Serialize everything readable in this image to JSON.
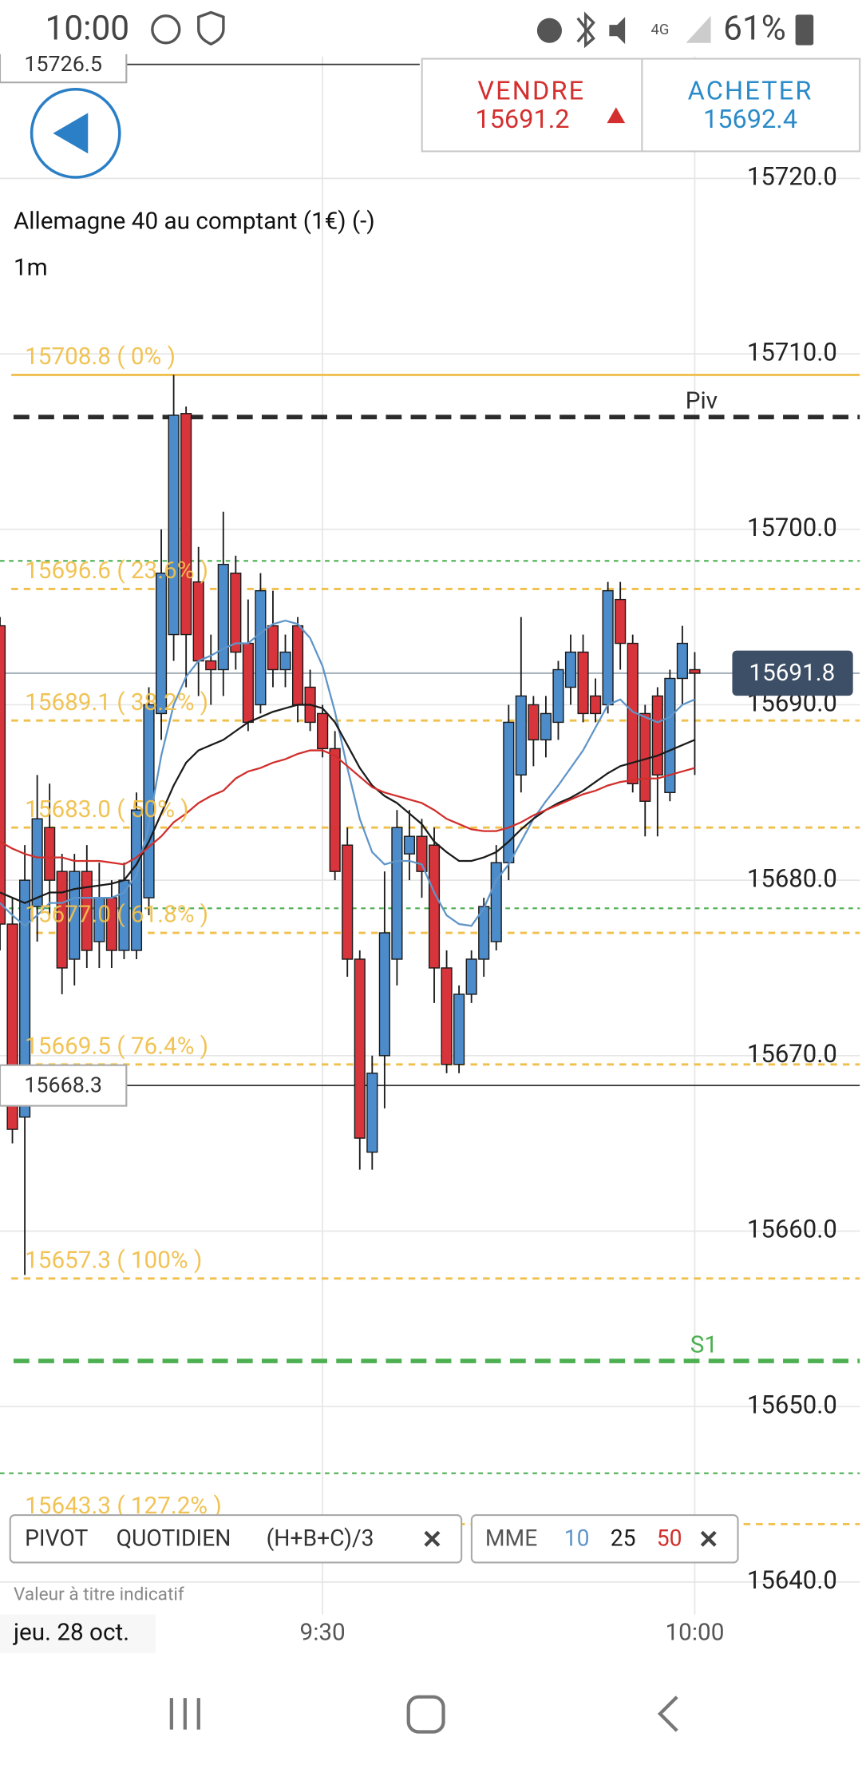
{
  "status_bar": {
    "time": "10:00",
    "battery": "61%"
  },
  "header": {
    "sell_label": "VENDRE",
    "sell_price": "15691.2",
    "buy_label": "ACHETER",
    "buy_price": "15692.4"
  },
  "chart_data": {
    "type": "candlestick",
    "title": "Allemagne 40 au comptant (1€) (-)",
    "subtitle": "1m",
    "x": [
      544,
      545,
      546,
      547,
      548,
      549,
      550,
      551,
      552,
      553,
      554,
      555,
      556,
      557,
      558,
      559,
      560,
      561,
      562,
      563,
      564,
      565,
      566,
      567,
      568,
      569,
      570,
      571,
      572,
      573,
      574,
      575,
      576,
      577,
      578,
      579,
      580,
      581,
      582,
      583,
      584,
      585,
      586,
      587,
      588,
      589,
      590,
      591,
      592,
      593,
      594,
      595,
      596,
      597,
      598,
      599,
      600
    ],
    "open": [
      15694.5,
      15677.5,
      15666.5,
      15678.5,
      15683,
      15680.5,
      15675.5,
      15680.5,
      15676.5,
      15679,
      15676,
      15676,
      15679,
      15689.5,
      15694,
      15706.6,
      15697,
      15692.5,
      15692,
      15697.5,
      15693.5,
      15690,
      15694.5,
      15692,
      15694.5,
      15691,
      15689.5,
      15687.5,
      15682,
      15675.5,
      15664.5,
      15670,
      15675.5,
      15681.5,
      15682.5,
      15682,
      15675,
      15669.5,
      15673.5,
      15675.5,
      15676.5,
      15681,
      15686,
      15690,
      15688,
      15689,
      15691,
      15693,
      15690.5,
      15690,
      15696,
      15693.5,
      15689.5,
      15690.5,
      15685,
      15691.5,
      15692
    ],
    "high": [
      15695,
      15679,
      15682,
      15686,
      15685.5,
      15681.5,
      15681.5,
      15682,
      15681,
      15680,
      15681,
      15685,
      15691,
      15700,
      15708.8,
      15707,
      15699,
      15694,
      15701,
      15698.5,
      15696,
      15697.5,
      15696.5,
      15694,
      15695,
      15692,
      15690,
      15688.5,
      15683,
      15676,
      15670,
      15680.5,
      15684,
      15684,
      15683.5,
      15683,
      15676,
      15674,
      15676,
      15679,
      15682,
      15690,
      15695,
      15690.5,
      15690.5,
      15692.5,
      15694,
      15694,
      15691.5,
      15697,
      15697,
      15694,
      15690,
      15691,
      15692,
      15694.5,
      15693
    ],
    "low": [
      15676,
      15665,
      15657.5,
      15676.5,
      15678,
      15673.5,
      15674,
      15675,
      15675,
      15675,
      15675.5,
      15675.5,
      15678,
      15688,
      15692.5,
      15691,
      15690.5,
      15690,
      15690.5,
      15692,
      15688.5,
      15689.5,
      15691,
      15691,
      15689,
      15688.5,
      15687,
      15680,
      15674.5,
      15663.5,
      15663.5,
      15667,
      15674,
      15680,
      15679,
      15673,
      15669,
      15669,
      15673,
      15674.5,
      15676,
      15680,
      15685,
      15686.5,
      15687,
      15688,
      15690,
      15689,
      15689,
      15689.5,
      15692,
      15685,
      15682.5,
      15682.5,
      15684.5,
      15690,
      15686
    ],
    "close": [
      15677.5,
      15665.8,
      15680,
      15683.5,
      15680,
      15675,
      15680.5,
      15676,
      15679,
      15676,
      15680,
      15684,
      15690,
      15697.5,
      15706.5,
      15694,
      15692.5,
      15692,
      15698,
      15693,
      15689,
      15696.5,
      15692,
      15693,
      15690,
      15689,
      15687.5,
      15680.5,
      15675.5,
      15665.3,
      15669,
      15677,
      15683,
      15682.5,
      15680.5,
      15675,
      15669.5,
      15673.5,
      15675.5,
      15678.5,
      15681,
      15689,
      15690.5,
      15688,
      15689.5,
      15692,
      15693,
      15689.5,
      15689.5,
      15696.5,
      15693.5,
      15685.5,
      15684.5,
      15686,
      15691.5,
      15693.5,
      15691.8
    ],
    "up_color": "#4d8ccb",
    "down_color": "#d8343c",
    "series": [
      {
        "name": "10",
        "color": "#5f95c8",
        "values": [
          15678.7,
          15678.0,
          15677.4,
          15678.0,
          15678.7,
          15678.7,
          15679.0,
          15679.0,
          15679.0,
          15679.0,
          15679.3,
          15680.3,
          15683.2,
          15687.1,
          15690.0,
          15691.6,
          15692.5,
          15692.8,
          15693.2,
          15693.5,
          15693.5,
          15694.1,
          15694.6,
          15694.8,
          15694.6,
          15693.8,
          15692.2,
          15689.6,
          15686.4,
          15683.5,
          15681.6,
          15680.9,
          15681.1,
          15681.1,
          15680.9,
          15679.3,
          15678.0,
          15677.5,
          15677.4,
          15678.4,
          15680.0,
          15680.9,
          15682.2,
          15683.5,
          15684.5,
          15685.4,
          15686.4,
          15687.4,
          15688.7,
          15690.0,
          15690.3,
          15689.6,
          15689.3,
          15689.0,
          15689.3,
          15690.0,
          15690.3
        ]
      },
      {
        "name": "25",
        "color": "#1b1b1b",
        "values": [
          15679.3,
          15679.0,
          15678.7,
          15679.0,
          15679.3,
          15679.3,
          15679.5,
          15679.6,
          15679.7,
          15679.8,
          15680.0,
          15680.9,
          15682.2,
          15683.8,
          15685.4,
          15686.7,
          15687.4,
          15687.7,
          15688.0,
          15688.5,
          15689.0,
          15689.3,
          15689.6,
          15689.8,
          15690.0,
          15690.0,
          15689.8,
          15689.0,
          15687.7,
          15686.4,
          15685.4,
          15684.8,
          15684.4,
          15683.8,
          15683.2,
          15682.2,
          15681.6,
          15681.1,
          15681.1,
          15681.3,
          15681.6,
          15682.2,
          15682.9,
          15683.5,
          15684.0,
          15684.4,
          15684.7,
          15685.1,
          15685.6,
          15686.1,
          15686.5,
          15686.7,
          15686.9,
          15687.1,
          15687.4,
          15687.7,
          15688.0
        ]
      },
      {
        "name": "50",
        "color": "#d12f2b",
        "values": [
          15682.2,
          15681.8,
          15681.5,
          15681.3,
          15681.3,
          15681.3,
          15681.1,
          15681.1,
          15681.1,
          15681.0,
          15680.9,
          15681.3,
          15681.9,
          15682.5,
          15683.3,
          15683.8,
          15684.4,
          15684.8,
          15685.1,
          15685.8,
          15686.2,
          15686.4,
          15686.7,
          15686.9,
          15687.2,
          15687.4,
          15687.4,
          15687.1,
          15686.5,
          15685.9,
          15685.3,
          15685.0,
          15684.8,
          15684.6,
          15684.4,
          15684.0,
          15683.5,
          15683.2,
          15682.9,
          15682.8,
          15682.8,
          15683.0,
          15683.3,
          15683.7,
          15684.0,
          15684.3,
          15684.6,
          15684.9,
          15685.1,
          15685.4,
          15685.6,
          15685.7,
          15685.8,
          15685.8,
          15686.0,
          15686.2,
          15686.4
        ]
      }
    ],
    "xlim": [
      544,
      613.3
    ],
    "xticks": [
      {
        "value": 570,
        "label": "9:30"
      },
      {
        "value": 600,
        "label": "10:00"
      }
    ],
    "ylim": [
      15638.15,
      15726.95
    ],
    "yticks": [
      {
        "value": 15640,
        "label": "15640.0"
      },
      {
        "value": 15650,
        "label": "15650.0"
      },
      {
        "value": 15660,
        "label": "15660.0"
      },
      {
        "value": 15670,
        "label": "15670.0"
      },
      {
        "value": 15680,
        "label": "15680.0"
      },
      {
        "value": 15690,
        "label": "15690.0"
      },
      {
        "value": 15700,
        "label": "15700.0"
      },
      {
        "value": 15710,
        "label": "15710.0"
      },
      {
        "value": 15720,
        "label": "15720.0"
      }
    ],
    "grid": true,
    "fib_color": "#f0c04c",
    "fib_levels": [
      {
        "value": 15708.8,
        "label": "15708.8 ( 0% )"
      },
      {
        "value": 15696.6,
        "label": "15696.6 ( 23.6% )"
      },
      {
        "value": 15689.1,
        "label": "15689.1 ( 38.2% )"
      },
      {
        "value": 15683.0,
        "label": "15683.0 ( 50% )"
      },
      {
        "value": 15677.0,
        "label": "15677.0 ( 61.8% )"
      },
      {
        "value": 15669.5,
        "label": "15669.5 ( 76.4% )"
      },
      {
        "value": 15657.3,
        "label": "15657.3 ( 100% )"
      },
      {
        "value": 15643.3,
        "label": "15643.3 ( 127.2% )"
      }
    ],
    "pivot_levels": [
      {
        "name": "Piv",
        "value": 15706.4,
        "color": "#2b2b2b"
      },
      {
        "name": "S1",
        "value": 15652.6,
        "color": "#4caf50"
      }
    ],
    "minor_pivot_levels": [
      15698.2,
      15678.4,
      15646.2
    ],
    "minor_pivot_color": "#4caf50",
    "last_price": 15691.8,
    "cursor_price": 15668.3,
    "top_price": 15726.5
  },
  "indicators": {
    "pivot": [
      "PIVOT",
      "QUOTIDIEN",
      "(H+B+C)/3"
    ],
    "mme": "MME"
  },
  "footer": {
    "note": "Valeur à titre indicatif",
    "date": "jeu. 28 oct."
  }
}
